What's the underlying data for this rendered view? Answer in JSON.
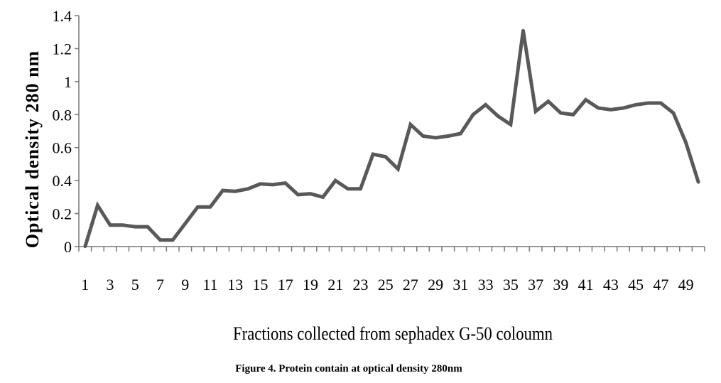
{
  "chart_data": {
    "type": "line",
    "title": "",
    "xlabel": "Fractions collected from sephadex G-50 coloumn",
    "ylabel": "Optical density  280 nm",
    "ylim": [
      0,
      1.4
    ],
    "yticks": [
      "0",
      "0.2",
      "0.4",
      "0.6",
      "0.8",
      "1",
      "1.2",
      "1.4"
    ],
    "xticks": [
      "1",
      "3",
      "5",
      "7",
      "9",
      "11",
      "13",
      "15",
      "17",
      "19",
      "21",
      "23",
      "25",
      "27",
      "29",
      "31",
      "33",
      "35",
      "37",
      "39",
      "41",
      "43",
      "45",
      "47",
      "49"
    ],
    "grid": false,
    "legend": "none",
    "line_color": "#595959",
    "x": [
      1,
      2,
      3,
      4,
      5,
      6,
      7,
      8,
      9,
      10,
      11,
      12,
      13,
      14,
      15,
      16,
      17,
      18,
      19,
      20,
      21,
      22,
      23,
      24,
      25,
      26,
      27,
      28,
      29,
      30,
      31,
      32,
      33,
      34,
      35,
      36,
      37,
      38,
      39,
      40,
      41,
      42,
      43,
      44,
      45,
      46,
      47,
      48,
      49,
      50
    ],
    "values": [
      0.0,
      0.25,
      0.13,
      0.13,
      0.12,
      0.12,
      0.04,
      0.04,
      0.14,
      0.24,
      0.24,
      0.34,
      0.335,
      0.35,
      0.38,
      0.375,
      0.385,
      0.315,
      0.32,
      0.3,
      0.4,
      0.35,
      0.35,
      0.56,
      0.545,
      0.47,
      0.74,
      0.67,
      0.66,
      0.67,
      0.685,
      0.8,
      0.86,
      0.79,
      0.74,
      1.31,
      0.82,
      0.88,
      0.81,
      0.8,
      0.89,
      0.84,
      0.83,
      0.84,
      0.86,
      0.87,
      0.87,
      0.81,
      0.63,
      0.39
    ]
  },
  "caption": "Figure 4. Protein contain at optical density 280nm"
}
